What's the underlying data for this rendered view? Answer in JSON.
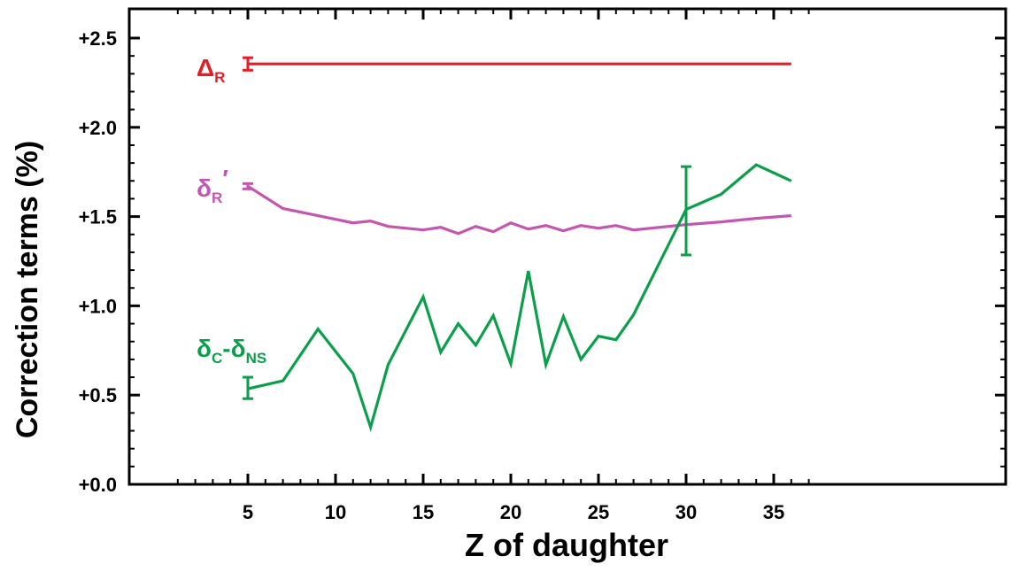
{
  "chart_data": {
    "type": "line",
    "title": "",
    "xlabel": "Z of daughter",
    "ylabel": "Correction terms (%)",
    "xlim": [
      0,
      37.5
    ],
    "ylim": [
      0,
      2.5
    ],
    "x_ticks": [
      5,
      10,
      15,
      20,
      25,
      30,
      35
    ],
    "x_tick_labels": [
      "5",
      "10",
      "15",
      "20",
      "25",
      "30",
      "35"
    ],
    "y_ticks": [
      0,
      0.5,
      1.0,
      1.5,
      2.0,
      2.5
    ],
    "y_tick_labels": [
      "+0.0",
      "+0.5",
      "+1.0",
      "+1.5",
      "+2.0",
      "+2.5"
    ],
    "grid": false,
    "series": [
      {
        "name": "ΔR",
        "label_main": "Δ",
        "label_sub": "R",
        "label_prime": "",
        "color": "#e21e26",
        "x": [
          5,
          36
        ],
        "y": [
          2.355,
          2.355
        ],
        "error_bars": [
          {
            "x": 5,
            "low": 2.32,
            "high": 2.39
          }
        ]
      },
      {
        "name": "δR′",
        "label_main": "δ",
        "label_sub": "R",
        "label_prime": "′",
        "color": "#c356b1",
        "x": [
          5,
          7,
          9,
          11,
          12,
          13,
          15,
          16,
          17,
          18,
          19,
          20,
          21,
          22,
          23,
          24,
          25,
          26,
          27,
          30,
          32,
          34,
          36
        ],
        "y": [
          1.67,
          1.545,
          1.505,
          1.465,
          1.475,
          1.445,
          1.425,
          1.44,
          1.405,
          1.445,
          1.415,
          1.465,
          1.43,
          1.45,
          1.42,
          1.45,
          1.435,
          1.45,
          1.425,
          1.455,
          1.47,
          1.49,
          1.505
        ],
        "error_bars": [
          {
            "x": 5,
            "low": 1.655,
            "high": 1.685
          }
        ]
      },
      {
        "name": "δC-δNS",
        "label_main": "δ",
        "label_sub": "C",
        "label_mid": "-δ",
        "label_sub2": "NS",
        "color": "#0c9f4b",
        "x": [
          5,
          7,
          9,
          11,
          12,
          13,
          15,
          16,
          17,
          18,
          19,
          20,
          21,
          22,
          23,
          24,
          25,
          26,
          27,
          30,
          32,
          34,
          36
        ],
        "y": [
          0.535,
          0.58,
          0.87,
          0.62,
          0.32,
          0.67,
          1.05,
          0.74,
          0.9,
          0.78,
          0.945,
          0.675,
          1.195,
          0.67,
          0.94,
          0.7,
          0.83,
          0.81,
          0.95,
          1.54,
          1.625,
          1.79,
          1.7
        ],
        "error_bars": [
          {
            "x": 5,
            "low": 0.48,
            "high": 0.6
          },
          {
            "x": 30,
            "low": 1.285,
            "high": 1.78
          }
        ]
      }
    ]
  }
}
